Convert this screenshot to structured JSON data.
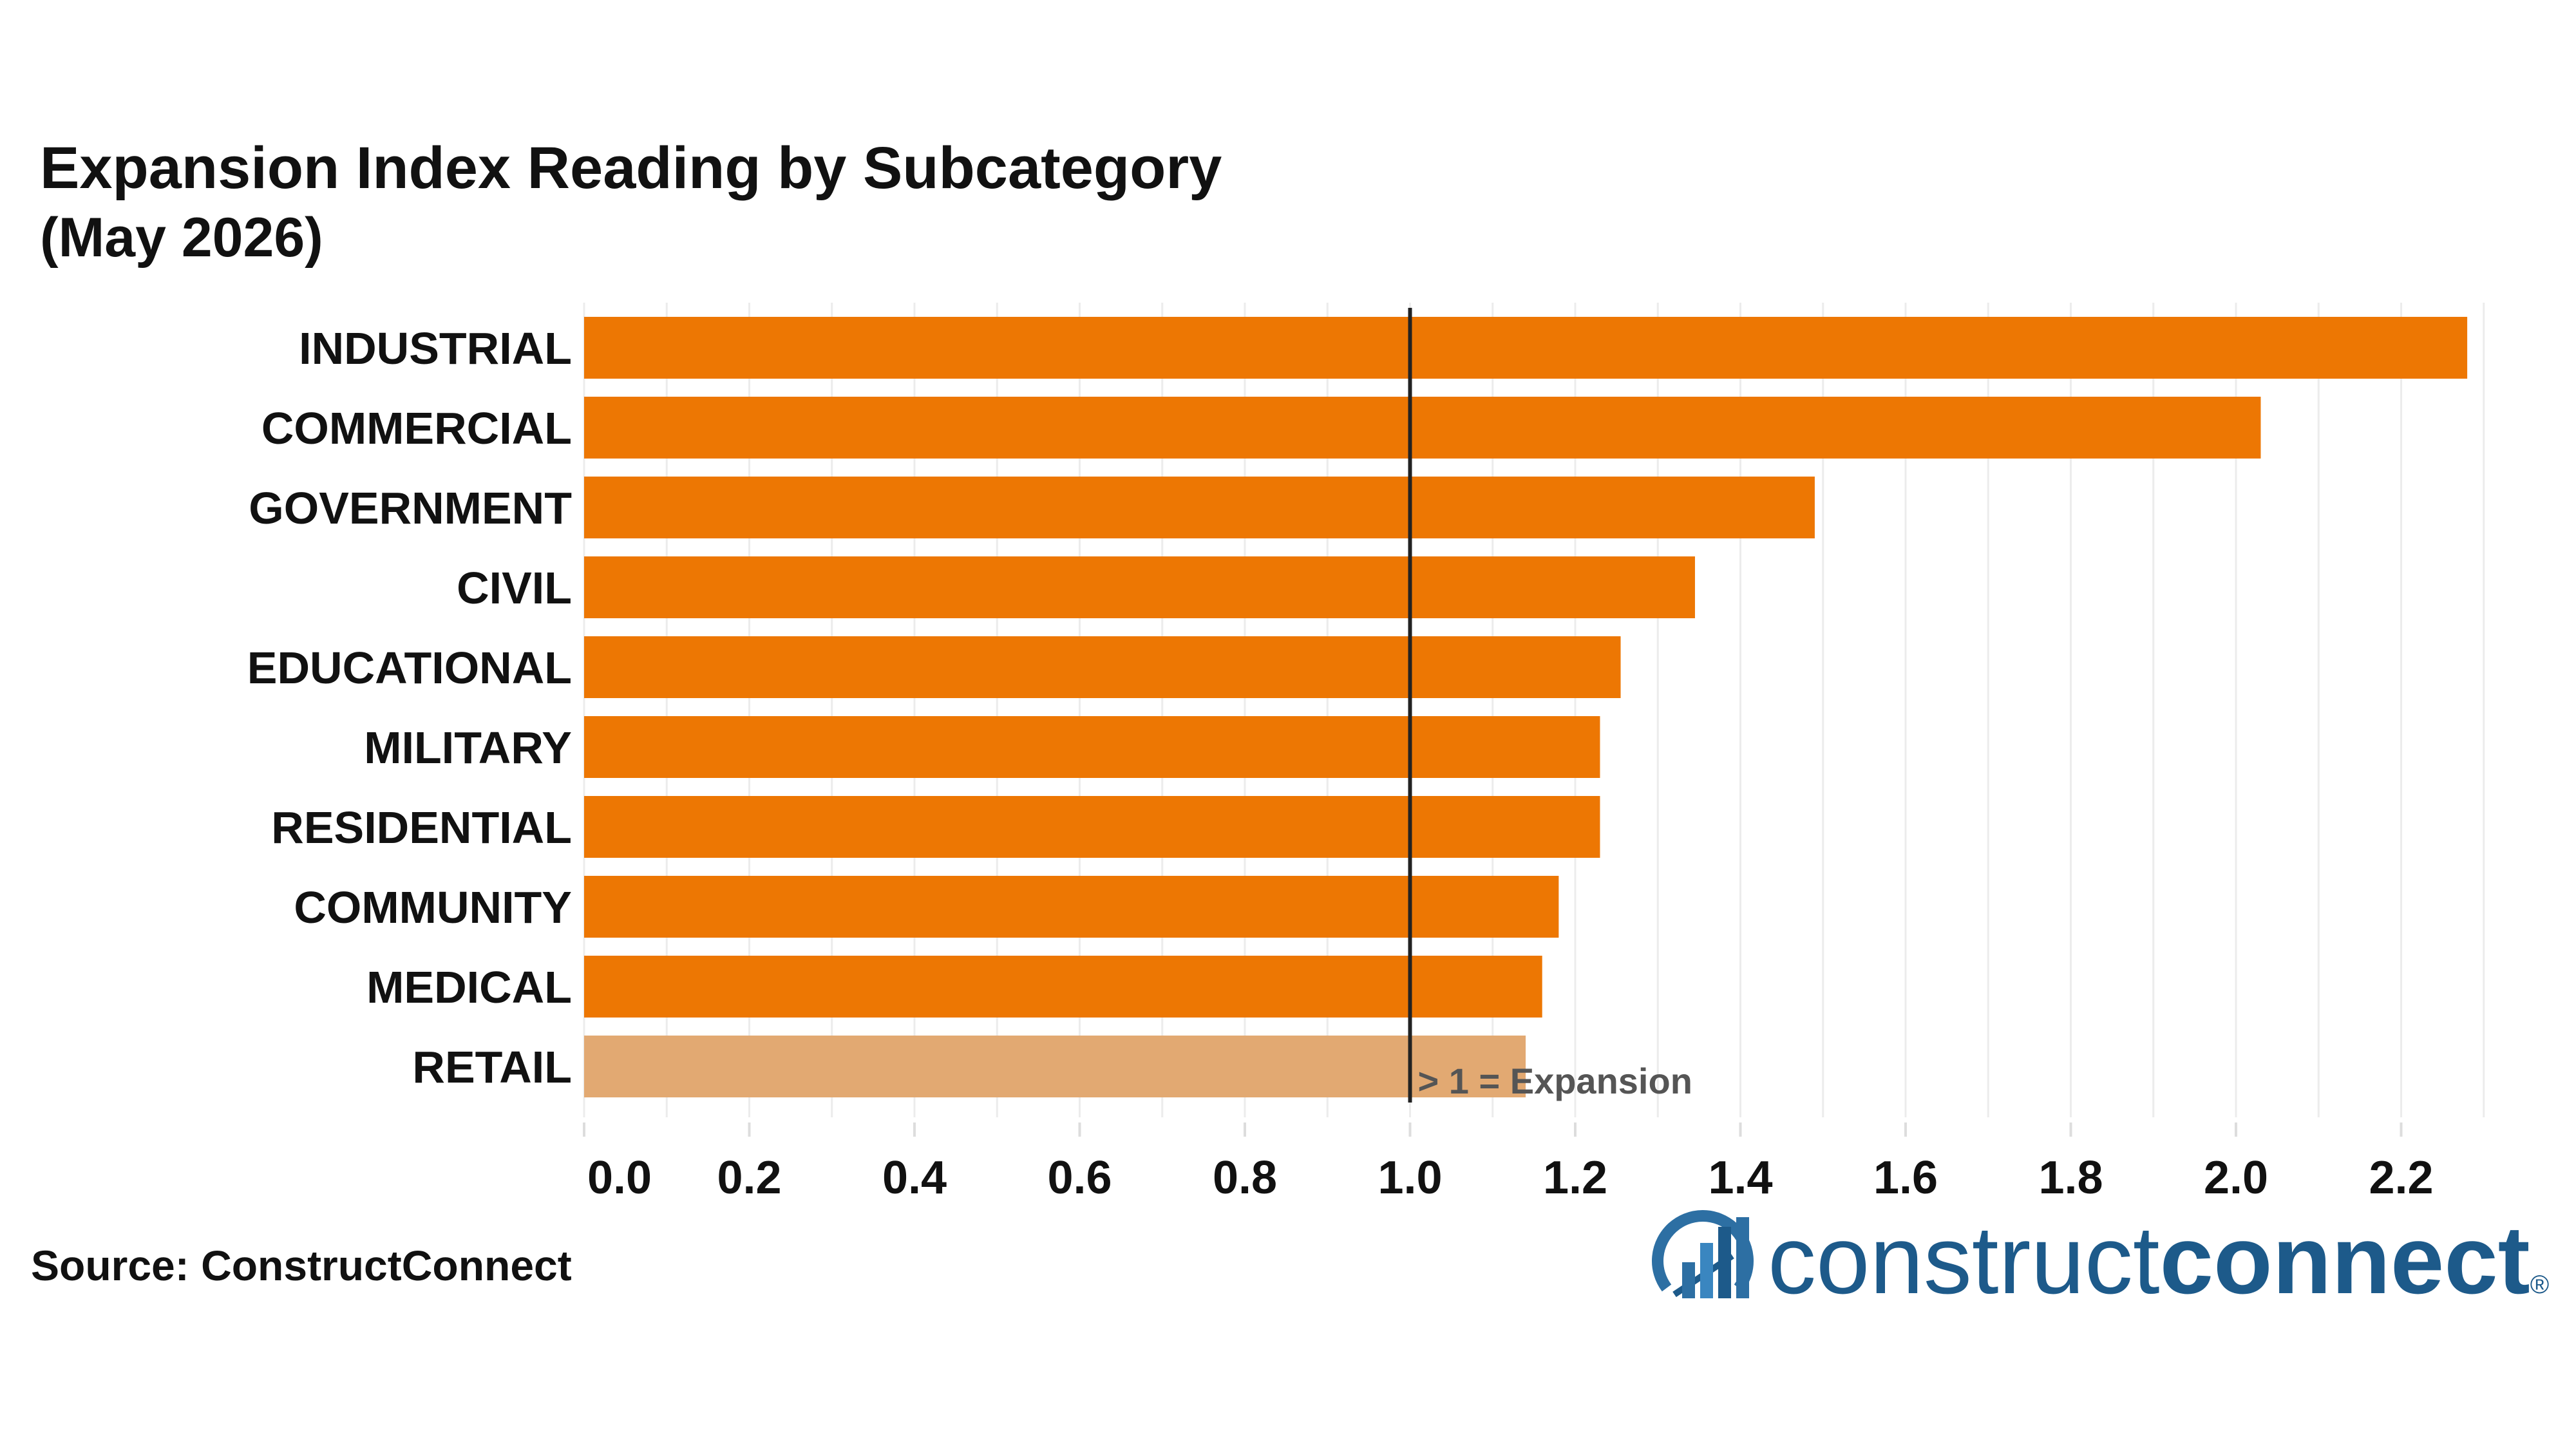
{
  "chart_data": {
    "type": "bar",
    "orientation": "horizontal",
    "title": "Expansion Index Reading by Subcategory",
    "subtitle": "(May 2026)",
    "categories": [
      "INDUSTRIAL",
      "COMMERCIAL",
      "GOVERNMENT",
      "CIVIL",
      "EDUCATIONAL",
      "MILITARY",
      "RESIDENTIAL",
      "COMMUNITY",
      "MEDICAL",
      "RETAIL"
    ],
    "values": [
      2.28,
      2.03,
      1.49,
      1.345,
      1.255,
      1.23,
      1.23,
      1.18,
      1.16,
      1.14
    ],
    "bar_colors": [
      "#ed7703",
      "#ed7703",
      "#ed7703",
      "#ed7703",
      "#ed7703",
      "#ed7703",
      "#ed7703",
      "#ed7703",
      "#ed7703",
      "#e2a972"
    ],
    "xlim": [
      0,
      2.39
    ],
    "xticks": [
      "0.0",
      "0.2",
      "0.4",
      "0.6",
      "0.8",
      "1.0",
      "1.2",
      "1.4",
      "1.6",
      "1.8",
      "2.0",
      "2.2"
    ],
    "xtick_values": [
      0.0,
      0.2,
      0.4,
      0.6,
      0.8,
      1.0,
      1.2,
      1.4,
      1.6,
      1.8,
      2.0,
      2.2
    ],
    "xlabel": "",
    "ylabel": "",
    "grid": true,
    "reference_line": {
      "value": 1.0,
      "label": "> 1 = Expansion",
      "color": "#222222"
    }
  },
  "source_text": "Source: ConstructConnect",
  "logo": {
    "text_light": "construct",
    "text_bold": "connect",
    "mark": "®",
    "color": "#1d5a8a"
  }
}
